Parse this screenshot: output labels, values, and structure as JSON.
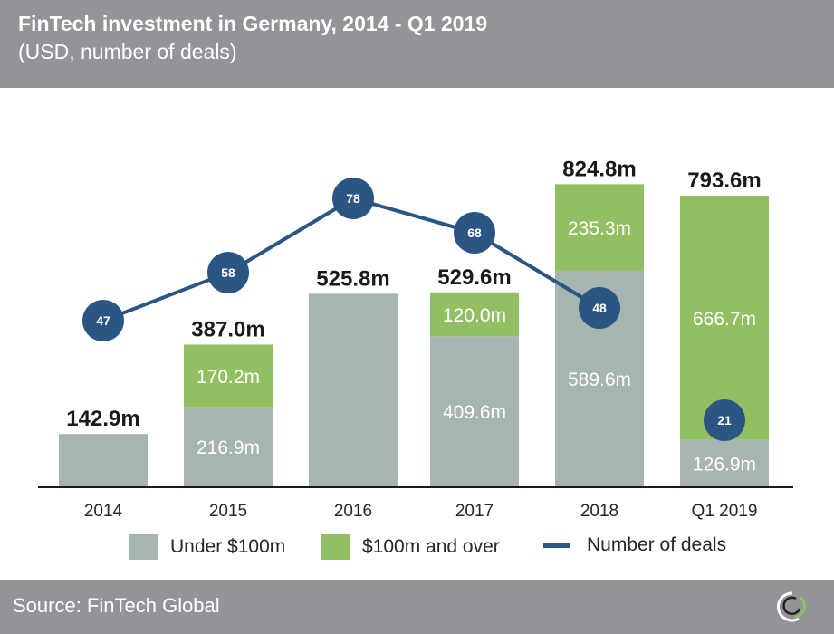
{
  "header": {
    "title": "FinTech investment in Germany, 2014 - Q1 2019",
    "subtitle": "(USD, number of deals)"
  },
  "footer": {
    "source": "Source: FinTech Global",
    "logo_icon": "fintech-global-ring-logo"
  },
  "colors": {
    "header_bg": "#939497",
    "under_100m": "#a6b5b1",
    "over_100m": "#92bf62",
    "deals_line": "#2b5583",
    "total_label": "#1a1a1a",
    "segment_label": "#ffffff"
  },
  "chart_data": {
    "type": "bar",
    "stacked": true,
    "title": "FinTech investment in Germany, 2014 - Q1 2019",
    "subtitle": "(USD, number of deals)",
    "xlabel": "",
    "ylabel": "",
    "units": "USD millions",
    "categories": [
      "2014",
      "2015",
      "2016",
      "2017",
      "2018",
      "Q1 2019"
    ],
    "series": [
      {
        "name": "Under $100m",
        "type": "bar",
        "color": "#a6b5b1",
        "values": [
          142.9,
          216.9,
          525.8,
          409.6,
          589.6,
          126.9
        ],
        "labels": [
          "",
          "216.9m",
          "",
          "409.6m",
          "589.6m",
          "126.9m"
        ]
      },
      {
        "name": "$100m and over",
        "type": "bar",
        "color": "#92bf62",
        "values": [
          0,
          170.2,
          0,
          120.0,
          235.3,
          666.7
        ],
        "labels": [
          "",
          "170.2m",
          "",
          "120.0m",
          "235.3m",
          "666.7m"
        ]
      },
      {
        "name": "Number of deals",
        "type": "line",
        "color": "#2b5583",
        "values": [
          47,
          58,
          78,
          68,
          48,
          21
        ]
      }
    ],
    "totals": [
      "142.9m",
      "387.0m",
      "525.8m",
      "529.6m",
      "824.8m",
      "793.6m"
    ],
    "total_values": [
      142.9,
      387.0,
      525.8,
      529.6,
      824.8,
      793.6
    ],
    "ylim": [
      0,
      1000
    ],
    "deals_ylim": [
      0,
      100
    ],
    "grid": false,
    "legend": {
      "position": "bottom",
      "entries": [
        "Under $100m",
        "$100m and over",
        "Number of deals"
      ]
    }
  }
}
